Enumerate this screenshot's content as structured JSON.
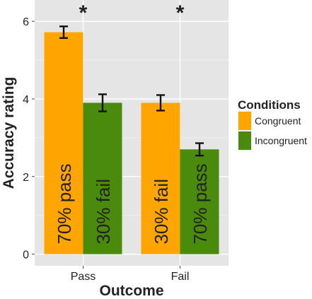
{
  "chart_data": {
    "type": "bar",
    "title": "",
    "xlabel": "Outcome",
    "ylabel": "Accuracy rating",
    "categories": [
      "Pass",
      "Fail"
    ],
    "ylim": [
      -0.3,
      6.55
    ],
    "yticks": [
      0,
      2,
      4,
      6
    ],
    "grid": true,
    "legend": {
      "title": "Conditions",
      "position": "right"
    },
    "series": [
      {
        "name": "Congruent",
        "color": "#FFA500",
        "values": [
          5.72,
          3.9
        ],
        "error": [
          0.15,
          0.2
        ],
        "bar_labels": [
          "70% pass",
          "30% fail"
        ]
      },
      {
        "name": "Incongruent",
        "color": "#4A8A0C",
        "values": [
          3.9,
          2.7
        ],
        "error": [
          0.22,
          0.16
        ],
        "bar_labels": [
          "30% fail",
          "70% pass"
        ]
      }
    ],
    "annotations": [
      "*",
      "*"
    ]
  },
  "colors": {
    "panel_bg": "#E5E5E5",
    "grid_major": "#FFFFFF",
    "grid_minor": "#F2F2F2",
    "text": "#222222",
    "error_bar": "#111111"
  }
}
